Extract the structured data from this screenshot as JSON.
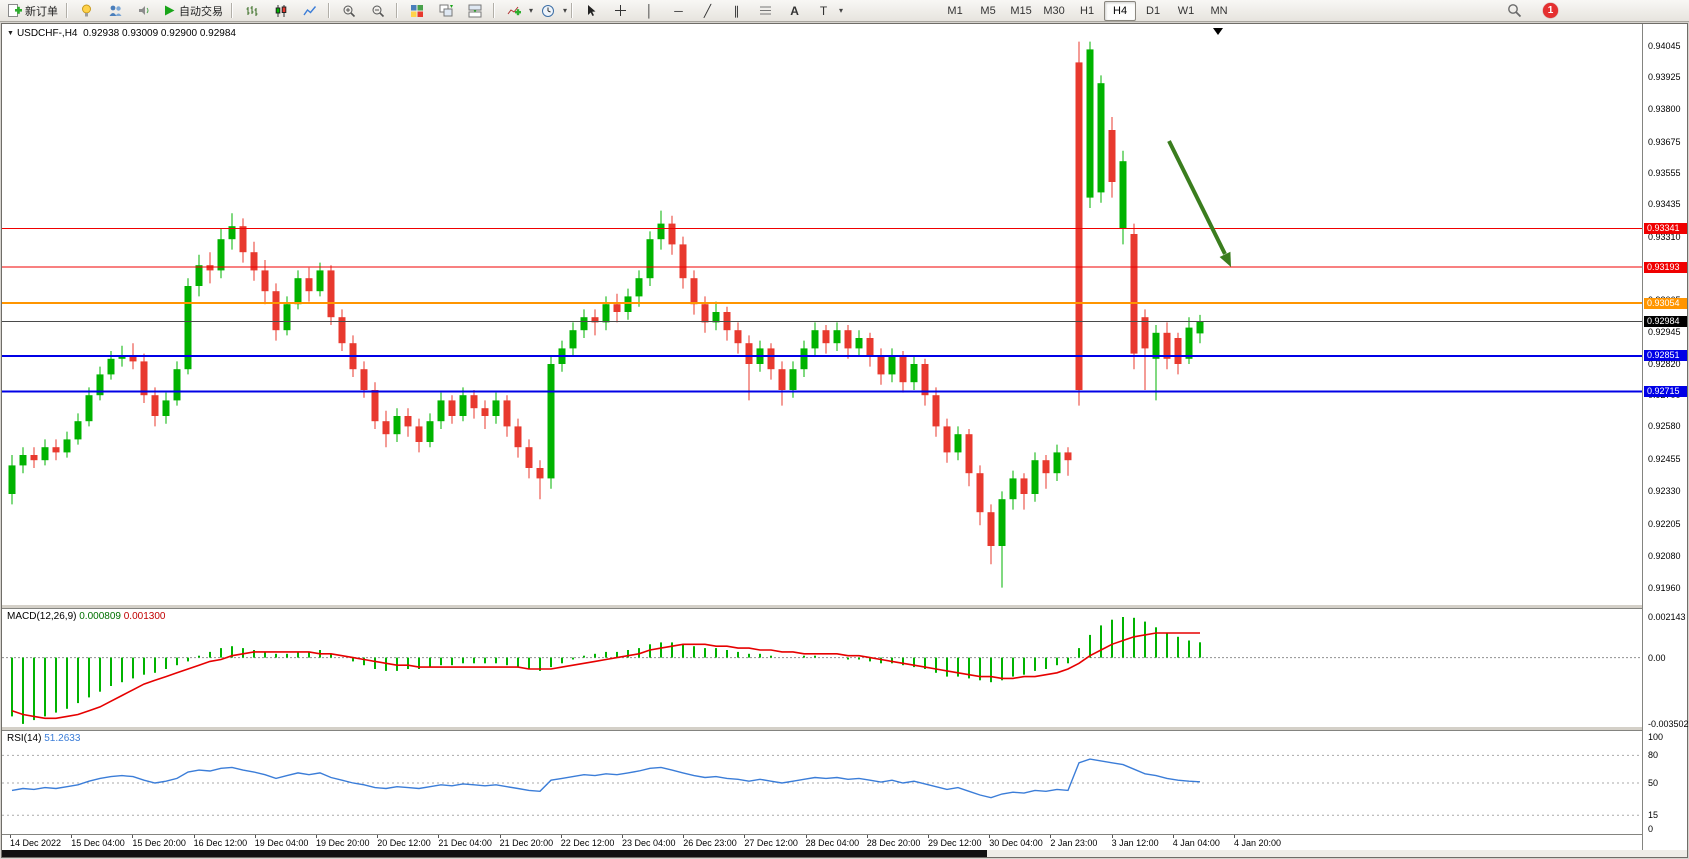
{
  "toolbar": {
    "new_order_label": "新订单",
    "auto_trading_label": "自动交易",
    "timeframes": [
      "M1",
      "M5",
      "M15",
      "M30",
      "H1",
      "H4",
      "D1",
      "W1",
      "MN"
    ],
    "active_timeframe": "H4",
    "notification_count": "1"
  },
  "icons": {
    "new_order": "page-plus",
    "lamp": "lamp",
    "profiles": "people",
    "sound": "speaker",
    "auto_trading_play": "green-play",
    "chart_types": [
      "bars",
      "candles",
      "line"
    ],
    "zoom": [
      "zoom-in",
      "zoom-out"
    ],
    "windows": [
      "tile-windows",
      "cascade-windows",
      "arrange-windows"
    ],
    "indicators": "add-indicator",
    "clock": "clock",
    "drawing": [
      "cursor",
      "crosshair",
      "vertical-line",
      "horizontal-line",
      "trendline",
      "channel",
      "fibonacci",
      "text",
      "text-label"
    ],
    "search": "magnifier"
  },
  "colors": {
    "candle_up": "#00b300",
    "candle_down": "#e8392e",
    "macd_histogram": "#00b300",
    "macd_signal": "#e60000",
    "rsi_line": "#3b7dd8",
    "arrow": "#3a7d1e",
    "current_price_line": "#4a4a4a",
    "tag_current_bg": "#000000"
  },
  "chart": {
    "symbol_label": "USDCHF-,H4",
    "ohlc": "0.92938 0.93009 0.92900 0.92984",
    "current_price": {
      "label": "0.92984",
      "value": 0.92984
    },
    "hlines": [
      {
        "label": "0.93341",
        "value": 0.93341,
        "color": "#f00000",
        "width": 1
      },
      {
        "label": "0.93193",
        "value": 0.93193,
        "color": "#f00000",
        "width": 1
      },
      {
        "label": "0.93054",
        "value": 0.93054,
        "color": "#ff9500",
        "width": 2
      },
      {
        "label": "0.92851",
        "value": 0.92851,
        "color": "#0000e6",
        "width": 2
      },
      {
        "label": "0.92715",
        "value": 0.92715,
        "color": "#0000e6",
        "width": 2
      }
    ],
    "price_axis": [
      "0.94045",
      "0.93925",
      "0.93800",
      "0.93675",
      "0.93555",
      "0.93435",
      "0.93310",
      "0.93190",
      "0.93065",
      "0.92945",
      "0.92820",
      "0.92700",
      "0.92580",
      "0.92455",
      "0.92330",
      "0.92205",
      "0.92080",
      "0.91960"
    ],
    "time_axis": [
      "14 Dec 2022",
      "15 Dec 04:00",
      "15 Dec 20:00",
      "16 Dec 12:00",
      "19 Dec 04:00",
      "19 Dec 20:00",
      "20 Dec 12:00",
      "21 Dec 04:00",
      "21 Dec 20:00",
      "22 Dec 12:00",
      "23 Dec 04:00",
      "26 Dec 23:00",
      "27 Dec 12:00",
      "28 Dec 04:00",
      "28 Dec 20:00",
      "29 Dec 12:00",
      "30 Dec 04:00",
      "2 Jan 23:00",
      "3 Jan 12:00",
      "4 Jan 04:00",
      "4 Jan 20:00"
    ],
    "candles": [
      [
        0.9232,
        0.9247,
        0.9228,
        0.9243
      ],
      [
        0.9243,
        0.925,
        0.924,
        0.9247
      ],
      [
        0.9247,
        0.925,
        0.9242,
        0.9245
      ],
      [
        0.9245,
        0.9253,
        0.9243,
        0.925
      ],
      [
        0.925,
        0.9253,
        0.9245,
        0.9248
      ],
      [
        0.9248,
        0.9256,
        0.9246,
        0.9253
      ],
      [
        0.9253,
        0.9263,
        0.9251,
        0.926
      ],
      [
        0.926,
        0.9273,
        0.9258,
        0.927
      ],
      [
        0.927,
        0.9281,
        0.9268,
        0.9278
      ],
      [
        0.9278,
        0.9287,
        0.9276,
        0.9284
      ],
      [
        0.9284,
        0.9289,
        0.9281,
        0.9285
      ],
      [
        0.9285,
        0.929,
        0.928,
        0.9283
      ],
      [
        0.9283,
        0.9286,
        0.9267,
        0.927
      ],
      [
        0.927,
        0.9273,
        0.9258,
        0.9262
      ],
      [
        0.9262,
        0.9271,
        0.9259,
        0.9268
      ],
      [
        0.9268,
        0.9283,
        0.9266,
        0.928
      ],
      [
        0.928,
        0.9315,
        0.9278,
        0.9312
      ],
      [
        0.9312,
        0.9324,
        0.9308,
        0.932
      ],
      [
        0.932,
        0.9325,
        0.9313,
        0.9318
      ],
      [
        0.9318,
        0.9334,
        0.9315,
        0.933
      ],
      [
        0.933,
        0.934,
        0.9326,
        0.9335
      ],
      [
        0.9335,
        0.9338,
        0.9321,
        0.9325
      ],
      [
        0.9325,
        0.9329,
        0.9314,
        0.9318
      ],
      [
        0.9318,
        0.9322,
        0.9305,
        0.931
      ],
      [
        0.931,
        0.9313,
        0.9291,
        0.9295
      ],
      [
        0.9295,
        0.9308,
        0.9293,
        0.9305
      ],
      [
        0.9305,
        0.9318,
        0.9303,
        0.9315
      ],
      [
        0.9315,
        0.9319,
        0.9306,
        0.931
      ],
      [
        0.931,
        0.9321,
        0.9308,
        0.9318
      ],
      [
        0.9318,
        0.932,
        0.9297,
        0.93
      ],
      [
        0.93,
        0.9303,
        0.9287,
        0.929
      ],
      [
        0.929,
        0.9293,
        0.9277,
        0.928
      ],
      [
        0.928,
        0.9283,
        0.9269,
        0.9272
      ],
      [
        0.9272,
        0.9275,
        0.9257,
        0.926
      ],
      [
        0.926,
        0.9264,
        0.925,
        0.9255
      ],
      [
        0.9255,
        0.9265,
        0.9252,
        0.9262
      ],
      [
        0.9262,
        0.9265,
        0.9254,
        0.9258
      ],
      [
        0.9258,
        0.9261,
        0.9248,
        0.9252
      ],
      [
        0.9252,
        0.9263,
        0.925,
        0.926
      ],
      [
        0.926,
        0.9271,
        0.9257,
        0.9268
      ],
      [
        0.9268,
        0.927,
        0.9259,
        0.9262
      ],
      [
        0.9262,
        0.9273,
        0.926,
        0.927
      ],
      [
        0.927,
        0.9272,
        0.9261,
        0.9265
      ],
      [
        0.9265,
        0.9268,
        0.9257,
        0.9262
      ],
      [
        0.9262,
        0.9271,
        0.9259,
        0.9268
      ],
      [
        0.9268,
        0.927,
        0.9254,
        0.9258
      ],
      [
        0.9258,
        0.9261,
        0.9246,
        0.925
      ],
      [
        0.925,
        0.9253,
        0.9238,
        0.9242
      ],
      [
        0.9242,
        0.9245,
        0.923,
        0.9238
      ],
      [
        0.9238,
        0.9285,
        0.9234,
        0.9282
      ],
      [
        0.9282,
        0.9291,
        0.9279,
        0.9288
      ],
      [
        0.9288,
        0.9298,
        0.9285,
        0.9295
      ],
      [
        0.9295,
        0.9303,
        0.9292,
        0.93
      ],
      [
        0.93,
        0.9303,
        0.9293,
        0.9298
      ],
      [
        0.9298,
        0.9308,
        0.9295,
        0.9305
      ],
      [
        0.9305,
        0.9309,
        0.9298,
        0.9302
      ],
      [
        0.9302,
        0.9311,
        0.9299,
        0.9308
      ],
      [
        0.9308,
        0.9318,
        0.9304,
        0.9315
      ],
      [
        0.9315,
        0.9333,
        0.9312,
        0.933
      ],
      [
        0.933,
        0.9341,
        0.9326,
        0.9336
      ],
      [
        0.9336,
        0.9339,
        0.9324,
        0.9328
      ],
      [
        0.9328,
        0.9331,
        0.9311,
        0.9315
      ],
      [
        0.9315,
        0.9318,
        0.9301,
        0.9305
      ],
      [
        0.9305,
        0.9308,
        0.9294,
        0.9298
      ],
      [
        0.9298,
        0.9306,
        0.9295,
        0.9302
      ],
      [
        0.9302,
        0.9304,
        0.9291,
        0.9295
      ],
      [
        0.9295,
        0.9298,
        0.9286,
        0.929
      ],
      [
        0.929,
        0.9293,
        0.9268,
        0.9282
      ],
      [
        0.9282,
        0.9291,
        0.9279,
        0.9288
      ],
      [
        0.9288,
        0.929,
        0.9276,
        0.928
      ],
      [
        0.928,
        0.9283,
        0.9266,
        0.9272
      ],
      [
        0.9272,
        0.9283,
        0.9269,
        0.928
      ],
      [
        0.928,
        0.9291,
        0.9277,
        0.9288
      ],
      [
        0.9288,
        0.9298,
        0.9285,
        0.9295
      ],
      [
        0.9295,
        0.9297,
        0.9286,
        0.929
      ],
      [
        0.929,
        0.9298,
        0.9287,
        0.9295
      ],
      [
        0.9295,
        0.9297,
        0.9284,
        0.9288
      ],
      [
        0.9288,
        0.9295,
        0.9285,
        0.9292
      ],
      [
        0.9292,
        0.9294,
        0.9281,
        0.9285
      ],
      [
        0.9285,
        0.9288,
        0.9274,
        0.9278
      ],
      [
        0.9278,
        0.9288,
        0.9275,
        0.9285
      ],
      [
        0.9285,
        0.9287,
        0.9271,
        0.9275
      ],
      [
        0.9275,
        0.9285,
        0.9272,
        0.9282
      ],
      [
        0.9282,
        0.9284,
        0.9266,
        0.927
      ],
      [
        0.927,
        0.9273,
        0.9254,
        0.9258
      ],
      [
        0.9258,
        0.9261,
        0.9244,
        0.9248
      ],
      [
        0.9248,
        0.9258,
        0.9245,
        0.9255
      ],
      [
        0.9255,
        0.9257,
        0.9235,
        0.924
      ],
      [
        0.924,
        0.9243,
        0.922,
        0.9225
      ],
      [
        0.9225,
        0.9228,
        0.9205,
        0.9212
      ],
      [
        0.9212,
        0.9233,
        0.9196,
        0.923
      ],
      [
        0.923,
        0.9241,
        0.9226,
        0.9238
      ],
      [
        0.9238,
        0.924,
        0.9226,
        0.9232
      ],
      [
        0.9232,
        0.9248,
        0.9229,
        0.9245
      ],
      [
        0.9245,
        0.9247,
        0.9234,
        0.924
      ],
      [
        0.924,
        0.9251,
        0.9237,
        0.9248
      ],
      [
        0.9248,
        0.925,
        0.9239,
        0.9245
      ],
      [
        0.9398,
        0.9406,
        0.9266,
        0.9272
      ],
      [
        0.9346,
        0.9406,
        0.9342,
        0.9403
      ],
      [
        0.9348,
        0.9393,
        0.9344,
        0.939
      ],
      [
        0.9372,
        0.9377,
        0.9346,
        0.9352
      ],
      [
        0.9334,
        0.9364,
        0.9328,
        0.936
      ],
      [
        0.9332,
        0.9336,
        0.928,
        0.9286
      ],
      [
        0.93,
        0.9303,
        0.9272,
        0.9288
      ],
      [
        0.9284,
        0.9297,
        0.9268,
        0.9294
      ],
      [
        0.9294,
        0.9298,
        0.928,
        0.9284
      ],
      [
        0.9292,
        0.9294,
        0.9278,
        0.9282
      ],
      [
        0.9284,
        0.93,
        0.9282,
        0.9296
      ],
      [
        0.92938,
        0.93009,
        0.929,
        0.92984
      ]
    ]
  },
  "macd": {
    "label": "MACD(12,26,9)",
    "value1": "0.000809",
    "value2": "0.001300",
    "axis": [
      "0.002143",
      "0.00",
      "-0.003502"
    ],
    "histogram": [
      -0.0031,
      -0.0035,
      -0.0033,
      -0.0031,
      -0.0029,
      -0.0027,
      -0.0024,
      -0.0021,
      -0.0018,
      -0.0015,
      -0.0013,
      -0.0011,
      -0.0009,
      -0.0008,
      -0.0006,
      -0.0004,
      -0.0002,
      0.0001,
      0.0003,
      0.0005,
      0.0006,
      0.0005,
      0.0004,
      0.0003,
      0.0002,
      0.0002,
      0.0003,
      0.0003,
      0.0004,
      0.0002,
      0.0,
      -0.0002,
      -0.0004,
      -0.0006,
      -0.0007,
      -0.0007,
      -0.0006,
      -0.0006,
      -0.0005,
      -0.0004,
      -0.0004,
      -0.0003,
      -0.0003,
      -0.0003,
      -0.0003,
      -0.0004,
      -0.0005,
      -0.0006,
      -0.0007,
      -0.0005,
      -0.0003,
      -0.0001,
      0.0001,
      0.0002,
      0.0003,
      0.0003,
      0.0004,
      0.0005,
      0.0007,
      0.0008,
      0.0008,
      0.0007,
      0.0006,
      0.0005,
      0.0005,
      0.0004,
      0.0003,
      0.0002,
      0.0002,
      0.0001,
      0.0,
      0.0,
      0.0001,
      0.0001,
      0.0,
      0.0,
      -0.0001,
      -0.0001,
      -0.0002,
      -0.0003,
      -0.0003,
      -0.0004,
      -0.0005,
      -0.0006,
      -0.0008,
      -0.001,
      -0.001,
      -0.0011,
      -0.0012,
      -0.0013,
      -0.0012,
      -0.001,
      -0.0009,
      -0.0007,
      -0.0006,
      -0.0004,
      -0.0003,
      0.0005,
      0.0012,
      0.0017,
      0.002,
      0.00214,
      0.0021,
      0.0019,
      0.0016,
      0.0013,
      0.0011,
      0.0009,
      0.000809
    ],
    "signal": [
      -0.0028,
      -0.003,
      -0.0031,
      -0.0032,
      -0.0032,
      -0.0031,
      -0.003,
      -0.0028,
      -0.0026,
      -0.0023,
      -0.002,
      -0.0017,
      -0.0014,
      -0.0012,
      -0.001,
      -0.0008,
      -0.0006,
      -0.0004,
      -0.0002,
      -0.0001,
      0.0001,
      0.0002,
      0.0003,
      0.0003,
      0.0003,
      0.0003,
      0.0003,
      0.0003,
      0.0002,
      0.0002,
      0.0001,
      0.0,
      -0.0001,
      -0.0002,
      -0.0003,
      -0.0004,
      -0.0004,
      -0.0005,
      -0.0005,
      -0.0005,
      -0.0005,
      -0.0005,
      -0.0005,
      -0.0005,
      -0.0005,
      -0.0005,
      -0.0005,
      -0.0006,
      -0.0006,
      -0.0006,
      -0.0005,
      -0.0004,
      -0.0003,
      -0.0002,
      -0.0001,
      0.0,
      0.0001,
      0.0002,
      0.0004,
      0.0005,
      0.0006,
      0.0007,
      0.0007,
      0.0007,
      0.0006,
      0.0006,
      0.0005,
      0.0005,
      0.0004,
      0.0004,
      0.0003,
      0.0003,
      0.0002,
      0.0002,
      0.0002,
      0.0002,
      0.0001,
      0.0001,
      0.0,
      -0.0001,
      -0.0002,
      -0.0003,
      -0.0004,
      -0.0005,
      -0.0006,
      -0.0007,
      -0.0008,
      -0.0009,
      -0.001,
      -0.001,
      -0.0011,
      -0.0011,
      -0.001,
      -0.001,
      -0.0009,
      -0.0008,
      -0.0006,
      -0.0003,
      0.0001,
      0.0004,
      0.0007,
      0.0009,
      0.0011,
      0.0012,
      0.0013,
      0.0013,
      0.0013,
      0.0013,
      0.0013
    ]
  },
  "rsi": {
    "label": "RSI(14)",
    "value": "51.2633",
    "axis": [
      "100",
      "80",
      "50",
      "15",
      "0"
    ],
    "levels": [
      80,
      50,
      15
    ],
    "values": [
      42,
      44,
      43,
      45,
      44,
      46,
      48,
      52,
      55,
      57,
      58,
      57,
      53,
      50,
      52,
      55,
      62,
      64,
      63,
      66,
      67,
      64,
      62,
      59,
      55,
      58,
      61,
      59,
      61,
      56,
      53,
      50,
      48,
      45,
      44,
      46,
      45,
      44,
      46,
      48,
      47,
      49,
      48,
      47,
      48,
      46,
      44,
      42,
      41,
      53,
      55,
      57,
      59,
      58,
      60,
      59,
      61,
      63,
      66,
      67,
      64,
      61,
      58,
      56,
      57,
      55,
      54,
      52,
      54,
      52,
      50,
      52,
      54,
      56,
      55,
      56,
      54,
      55,
      53,
      51,
      53,
      50,
      52,
      49,
      46,
      43,
      45,
      41,
      37,
      34,
      38,
      40,
      39,
      42,
      41,
      43,
      42,
      72,
      76,
      74,
      72,
      70,
      65,
      60,
      58,
      55,
      53,
      52,
      51.26
    ]
  }
}
